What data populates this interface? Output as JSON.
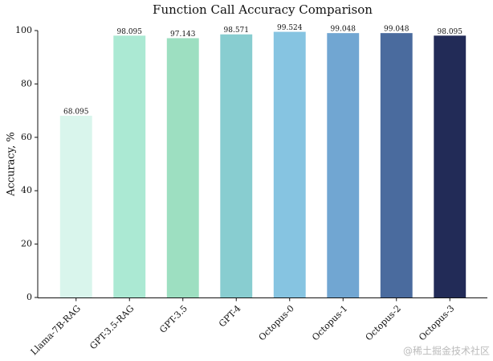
{
  "chart_data": {
    "type": "bar",
    "title": "Function Call Accuracy Comparison",
    "y_label": "Accuracy, %",
    "categories": [
      "Llama-7B-RAG",
      "GPT-3.5-RAG",
      "GPT-3.5",
      "GPT-4",
      "Octopus-0",
      "Octopus-1",
      "Octopus-2",
      "Octopus-3"
    ],
    "values": [
      68.095,
      98.095,
      97.143,
      98.571,
      99.524,
      99.048,
      99.048,
      98.095
    ],
    "colors": [
      "#d9f5ec",
      "#abe9d3",
      "#9ddfc1",
      "#88cdd0",
      "#86c4e1",
      "#71a6d2",
      "#4a6b9e",
      "#222b57"
    ],
    "ylim": [
      0,
      100
    ],
    "yticks": [
      0,
      20,
      40,
      60,
      80,
      100
    ],
    "grid": false
  },
  "watermark": "@稀土掘金技术社区"
}
